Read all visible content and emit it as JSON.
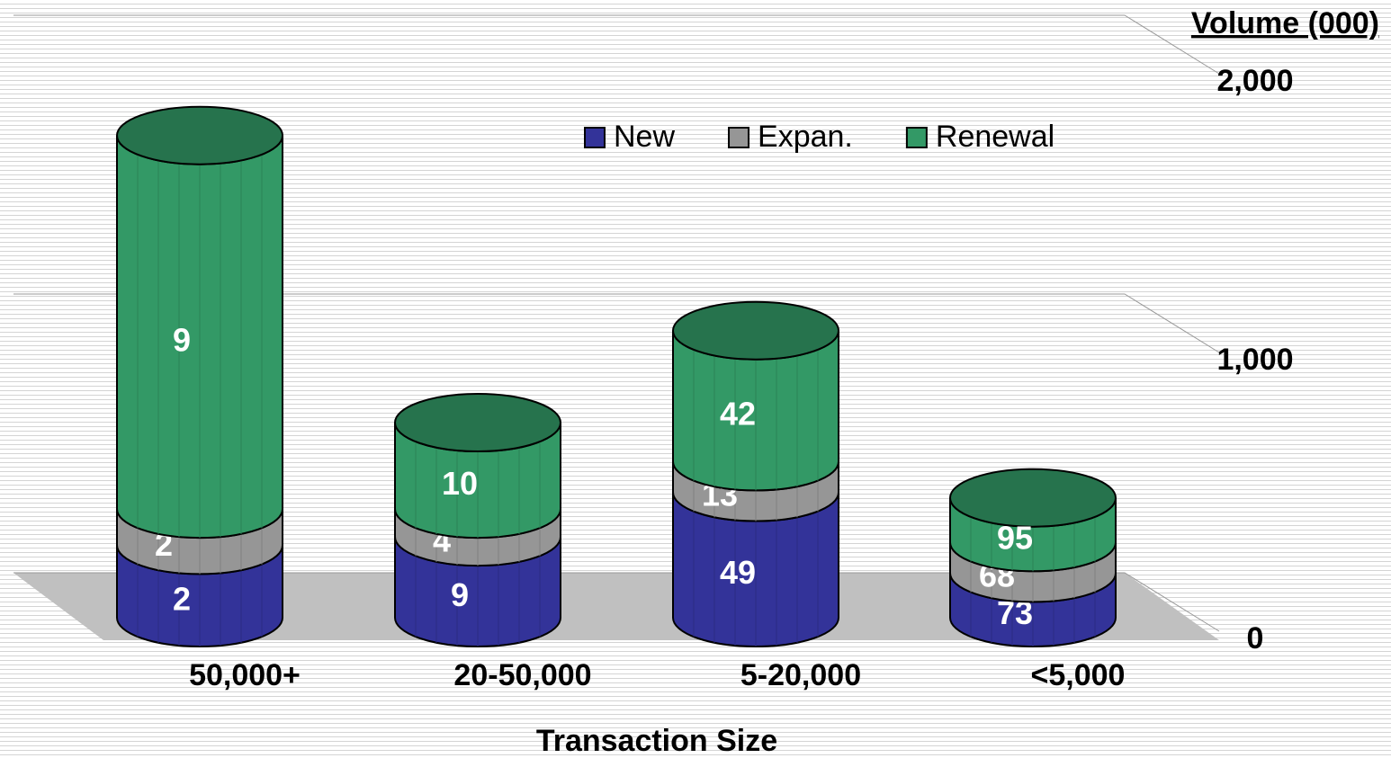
{
  "chart_data": {
    "type": "bar3d_cylinder_stacked",
    "y_label": "Volume (000)",
    "x_label": "Transaction Size",
    "categories": [
      "50,000+",
      "20-50,000",
      "5-20,000",
      "<5,000"
    ],
    "ylim": [
      0,
      2000
    ],
    "yticks": [
      0,
      {
        "value": 1000,
        "label": "1,000"
      },
      {
        "value": 2000,
        "label": "2,000"
      }
    ],
    "grid": true,
    "series": [
      {
        "name": "New",
        "color": "#333399",
        "values": [
          260,
          290,
          450,
          160
        ],
        "labels": [
          2,
          9,
          49,
          73
        ]
      },
      {
        "name": "Expan.",
        "color": "#969696",
        "values": [
          130,
          100,
          110,
          110
        ],
        "labels": [
          2,
          4,
          13,
          68
        ]
      },
      {
        "name": "Renewal",
        "color": "#339966",
        "values": [
          1340,
          310,
          470,
          160
        ],
        "labels": [
          9,
          10,
          42,
          95
        ]
      }
    ]
  }
}
